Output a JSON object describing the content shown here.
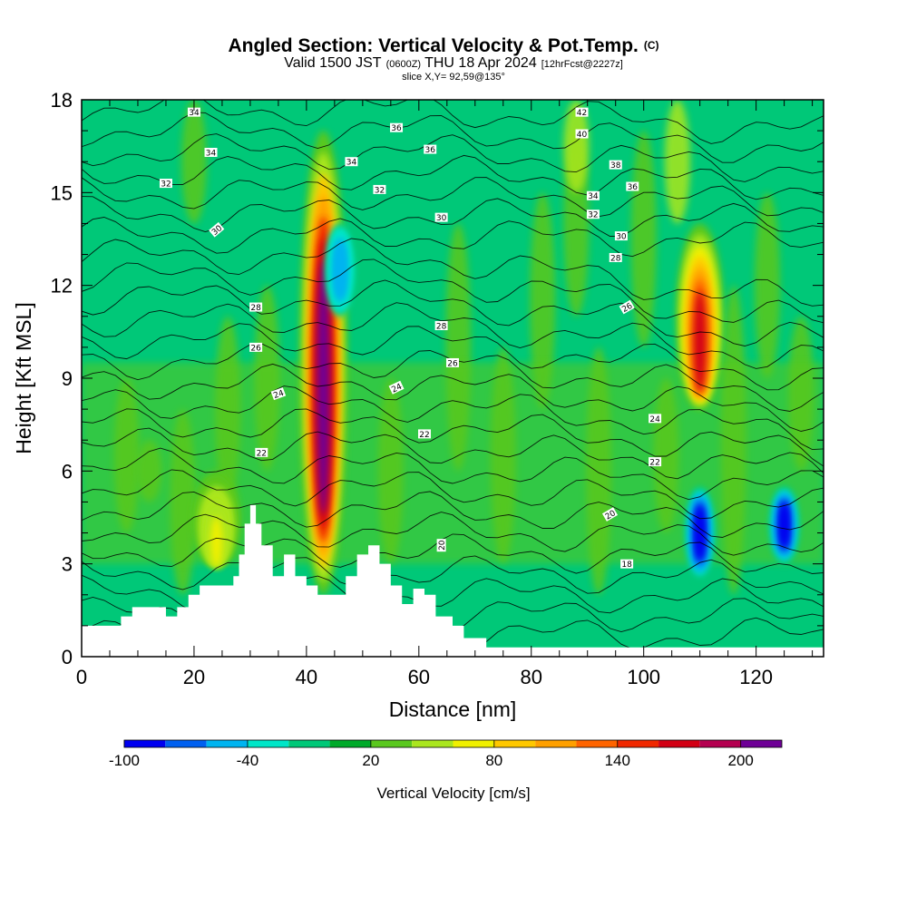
{
  "title": {
    "main": "Angled Section: Vertical Velocity & Pot.Temp.",
    "main_unit": "(C)",
    "valid_prefix": "Valid 1500 JST",
    "valid_z": "(0600Z)",
    "valid_date": "THU 18 Apr 2024",
    "valid_fcst": "[12hrFcst@2227z]",
    "slice": "slice X,Y= 92,59@135°"
  },
  "colorbar": {
    "label": "Vertical Velocity [cm/s]",
    "tick_labels": [
      "-100",
      "-40",
      "20",
      "80",
      "140",
      "200"
    ],
    "tick_values": [
      -100,
      -40,
      20,
      80,
      140,
      200
    ],
    "levels": [
      -100,
      -80,
      -60,
      -40,
      -20,
      0,
      20,
      40,
      60,
      80,
      100,
      120,
      140,
      160,
      180,
      200,
      220
    ],
    "colors": [
      "#0000f0",
      "#0060f0",
      "#00b4f0",
      "#00e6c8",
      "#00c878",
      "#00aa2a",
      "#5ac81e",
      "#aae61e",
      "#f0f000",
      "#ffc800",
      "#ffa000",
      "#ff6400",
      "#f02800",
      "#d20014",
      "#b40050",
      "#6e0096"
    ]
  },
  "chart_data": {
    "type": "heatmap",
    "xlabel": "Distance [nm]",
    "ylabel": "Height [Kft MSL]",
    "xlim": [
      0,
      132
    ],
    "ylim": [
      0,
      18
    ],
    "x_ticks": [
      0,
      20,
      40,
      60,
      80,
      100,
      120
    ],
    "y_ticks": [
      0,
      3,
      6,
      9,
      12,
      15,
      18
    ],
    "fill_variable": "Vertical Velocity [cm/s]",
    "contour_variable": "Pot.Temp. (C)",
    "updraft_features": [
      {
        "x": 43,
        "y_range": [
          2,
          17
        ],
        "peak_cm_s": 200
      },
      {
        "x": 110,
        "y_range": [
          8,
          14
        ],
        "peak_cm_s": 160
      },
      {
        "x": 24,
        "y_range": [
          3,
          6
        ],
        "peak_cm_s": 60
      }
    ],
    "downdraft_features": [
      {
        "x": 110,
        "y_range": [
          2.5,
          5.5
        ],
        "min_cm_s": -100
      },
      {
        "x": 125,
        "y_range": [
          3,
          5.5
        ],
        "min_cm_s": -100
      },
      {
        "x": 46,
        "y_range": [
          11,
          14
        ],
        "min_cm_s": -60
      }
    ],
    "terrain": [
      {
        "x": 0,
        "h": 1.0
      },
      {
        "x": 5,
        "h": 1.0
      },
      {
        "x": 7,
        "h": 1.3
      },
      {
        "x": 9,
        "h": 1.6
      },
      {
        "x": 13,
        "h": 1.6
      },
      {
        "x": 15,
        "h": 1.3
      },
      {
        "x": 17,
        "h": 1.6
      },
      {
        "x": 19,
        "h": 2.0
      },
      {
        "x": 21,
        "h": 2.3
      },
      {
        "x": 25,
        "h": 2.3
      },
      {
        "x": 27,
        "h": 2.6
      },
      {
        "x": 28,
        "h": 3.3
      },
      {
        "x": 29,
        "h": 4.3
      },
      {
        "x": 30,
        "h": 4.9
      },
      {
        "x": 31,
        "h": 4.3
      },
      {
        "x": 32,
        "h": 3.6
      },
      {
        "x": 34,
        "h": 2.6
      },
      {
        "x": 36,
        "h": 3.3
      },
      {
        "x": 38,
        "h": 2.6
      },
      {
        "x": 40,
        "h": 2.3
      },
      {
        "x": 42,
        "h": 2.0
      },
      {
        "x": 45,
        "h": 2.0
      },
      {
        "x": 47,
        "h": 2.6
      },
      {
        "x": 49,
        "h": 3.3
      },
      {
        "x": 51,
        "h": 3.6
      },
      {
        "x": 53,
        "h": 3.0
      },
      {
        "x": 55,
        "h": 2.3
      },
      {
        "x": 57,
        "h": 1.7
      },
      {
        "x": 59,
        "h": 2.2
      },
      {
        "x": 61,
        "h": 2.0
      },
      {
        "x": 63,
        "h": 1.3
      },
      {
        "x": 66,
        "h": 1.0
      },
      {
        "x": 68,
        "h": 0.6
      },
      {
        "x": 70,
        "h": 0.6
      },
      {
        "x": 72,
        "h": 0.3
      },
      {
        "x": 132,
        "h": 0.3
      }
    ],
    "contour_labels": [
      {
        "text": "34",
        "x": 20,
        "y": 17.6,
        "rot": 0
      },
      {
        "text": "34",
        "x": 23,
        "y": 16.3,
        "rot": 0
      },
      {
        "text": "32",
        "x": 15,
        "y": 15.3,
        "rot": 0
      },
      {
        "text": "30",
        "x": 24,
        "y": 13.8,
        "rot": -40
      },
      {
        "text": "28",
        "x": 31,
        "y": 11.3,
        "rot": 0
      },
      {
        "text": "26",
        "x": 31,
        "y": 10.0,
        "rot": 0
      },
      {
        "text": "24",
        "x": 35,
        "y": 8.5,
        "rot": -20
      },
      {
        "text": "22",
        "x": 32,
        "y": 6.6,
        "rot": 0
      },
      {
        "text": "36",
        "x": 56,
        "y": 17.1,
        "rot": 0
      },
      {
        "text": "34",
        "x": 48,
        "y": 16.0,
        "rot": 0
      },
      {
        "text": "36",
        "x": 62,
        "y": 16.4,
        "rot": 0
      },
      {
        "text": "32",
        "x": 53,
        "y": 15.1,
        "rot": 0
      },
      {
        "text": "30",
        "x": 64,
        "y": 14.2,
        "rot": 0
      },
      {
        "text": "28",
        "x": 64,
        "y": 10.7,
        "rot": 0
      },
      {
        "text": "26",
        "x": 66,
        "y": 9.5,
        "rot": 0
      },
      {
        "text": "24",
        "x": 56,
        "y": 8.7,
        "rot": -25
      },
      {
        "text": "22",
        "x": 61,
        "y": 7.2,
        "rot": 0
      },
      {
        "text": "20",
        "x": 64,
        "y": 3.6,
        "rot": -90
      },
      {
        "text": "42",
        "x": 89,
        "y": 17.6,
        "rot": 0
      },
      {
        "text": "40",
        "x": 89,
        "y": 16.9,
        "rot": 0
      },
      {
        "text": "38",
        "x": 95,
        "y": 15.9,
        "rot": 0
      },
      {
        "text": "36",
        "x": 98,
        "y": 15.2,
        "rot": 0
      },
      {
        "text": "34",
        "x": 91,
        "y": 14.9,
        "rot": 0
      },
      {
        "text": "32",
        "x": 91,
        "y": 14.3,
        "rot": 0
      },
      {
        "text": "30",
        "x": 96,
        "y": 13.6,
        "rot": 0
      },
      {
        "text": "28",
        "x": 95,
        "y": 12.9,
        "rot": 0
      },
      {
        "text": "26",
        "x": 97,
        "y": 11.3,
        "rot": -30
      },
      {
        "text": "24",
        "x": 102,
        "y": 7.7,
        "rot": 0
      },
      {
        "text": "22",
        "x": 102,
        "y": 6.3,
        "rot": 0
      },
      {
        "text": "20",
        "x": 94,
        "y": 4.6,
        "rot": -30
      },
      {
        "text": "18",
        "x": 97,
        "y": 3.0,
        "rot": 0
      }
    ]
  }
}
